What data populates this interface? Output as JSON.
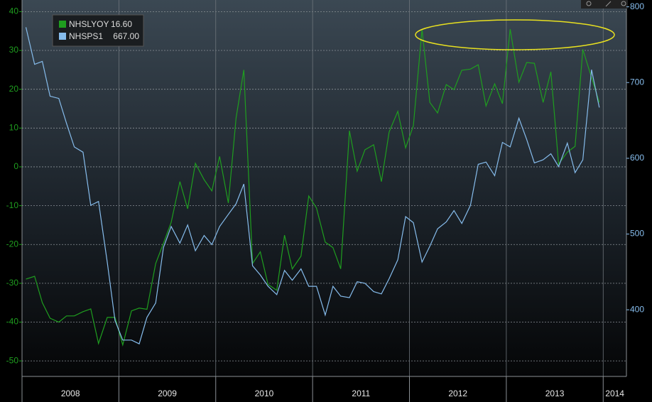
{
  "chart_data": {
    "type": "line",
    "x": [
      2008.04,
      2008.13,
      2008.21,
      2008.29,
      2008.38,
      2008.46,
      2008.54,
      2008.63,
      2008.71,
      2008.79,
      2008.88,
      2008.96,
      2009.04,
      2009.13,
      2009.21,
      2009.29,
      2009.38,
      2009.46,
      2009.54,
      2009.63,
      2009.71,
      2009.79,
      2009.88,
      2009.96,
      2010.04,
      2010.13,
      2010.21,
      2010.29,
      2010.38,
      2010.46,
      2010.54,
      2010.63,
      2010.71,
      2010.79,
      2010.88,
      2010.96,
      2011.04,
      2011.13,
      2011.21,
      2011.29,
      2011.38,
      2011.46,
      2011.54,
      2011.63,
      2011.71,
      2011.79,
      2011.88,
      2011.96,
      2012.04,
      2012.13,
      2012.21,
      2012.29,
      2012.38,
      2012.46,
      2012.54,
      2012.63,
      2012.71,
      2012.79,
      2012.88,
      2012.96,
      2013.04,
      2013.13,
      2013.21,
      2013.29,
      2013.38,
      2013.46,
      2013.54,
      2013.63,
      2013.71,
      2013.79,
      2013.88,
      2013.96
    ],
    "series": [
      {
        "name": "NHSLYOY",
        "last_label": "16.60",
        "color": "#1f9e1f",
        "values": [
          -28.9,
          -28.2,
          -35,
          -39,
          -40,
          -38.4,
          -38.4,
          -37.3,
          -36.6,
          -45.5,
          -38.8,
          -38.8,
          -45.9,
          -37.1,
          -36.4,
          -36.7,
          -24.9,
          -19.7,
          -14.3,
          -3.8,
          -10.8,
          0.9,
          -3.3,
          -6.2,
          2.7,
          -9.3,
          12.6,
          25,
          -24.9,
          -21.9,
          -30.3,
          -31.8,
          -17.6,
          -26.3,
          -23,
          -7.5,
          -10.6,
          -19.4,
          -20.8,
          -26.3,
          9.3,
          -1.1,
          4.4,
          5.7,
          -3.8,
          9,
          14.3,
          4.9,
          10.6,
          35.5,
          16.6,
          13.9,
          21.2,
          19.9,
          24.9,
          25.2,
          26.3,
          15.7,
          21.4,
          16.3,
          35.5,
          21.8,
          26.9,
          26.7,
          16.6,
          24.5,
          0.7,
          3.8,
          5.3,
          30.3,
          23,
          16.6
        ]
      },
      {
        "name": "NHSPS1",
        "last_label": "667.00",
        "color": "#86bcec",
        "axis": "y2",
        "values": [
          773,
          724,
          728,
          682,
          679,
          646,
          615,
          608,
          538,
          543,
          463,
          386,
          360,
          360,
          355,
          390,
          409,
          482,
          510,
          488,
          512,
          478,
          498,
          486,
          510,
          526,
          540,
          566,
          458,
          446,
          431,
          420,
          452,
          439,
          454,
          431,
          431,
          393,
          431,
          418,
          416,
          437,
          435,
          424,
          421,
          441,
          466,
          523,
          515,
          463,
          484,
          507,
          516,
          531,
          514,
          538,
          592,
          595,
          577,
          621,
          615,
          653,
          625,
          594,
          598,
          606,
          589,
          620,
          581,
          598,
          717,
          667
        ]
      }
    ],
    "xlim": [
      2008,
      2014.24
    ],
    "xticks": [
      2008,
      2009,
      2010,
      2011,
      2012,
      2013,
      2014
    ],
    "ylim": [
      -54,
      43
    ],
    "yticks": [
      -50,
      -40,
      -30,
      -20,
      -10,
      0,
      10,
      20,
      30,
      40
    ],
    "y2lim": [
      312,
      809
    ],
    "y2ticks": [
      400,
      500,
      600,
      700,
      800
    ],
    "grid": true,
    "legend": "upper left"
  }
}
